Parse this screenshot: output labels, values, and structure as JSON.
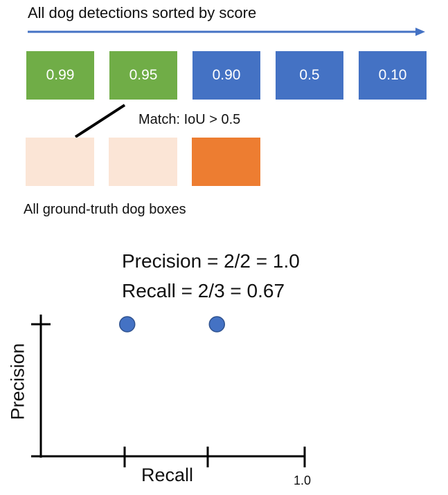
{
  "header": {
    "title": "All dog detections sorted by score"
  },
  "detections": [
    {
      "score": "0.99",
      "color": "#70ad47"
    },
    {
      "score": "0.95",
      "color": "#70ad47"
    },
    {
      "score": "0.90",
      "color": "#4472c4"
    },
    {
      "score": "0.5",
      "color": "#4472c4"
    },
    {
      "score": "0.10",
      "color": "#4472c4"
    }
  ],
  "match": {
    "label": "Match: IoU > 0.5"
  },
  "ground_truth": {
    "label": "All ground-truth dog boxes",
    "boxes": [
      {
        "color": "#fbe5d6"
      },
      {
        "color": "#fbe5d6"
      },
      {
        "color": "#ed7d31"
      }
    ]
  },
  "metrics": {
    "precision": "Precision = 2/2 = 1.0",
    "recall": "Recall = 2/3 = 0.67"
  },
  "plot": {
    "ylabel": "Precision",
    "xlabel": "Recall",
    "xtick_max": "1.0",
    "point_color": "#4472c4",
    "points": [
      {
        "recall": 0.33,
        "precision": 1.0
      },
      {
        "recall": 0.67,
        "precision": 1.0
      }
    ]
  }
}
